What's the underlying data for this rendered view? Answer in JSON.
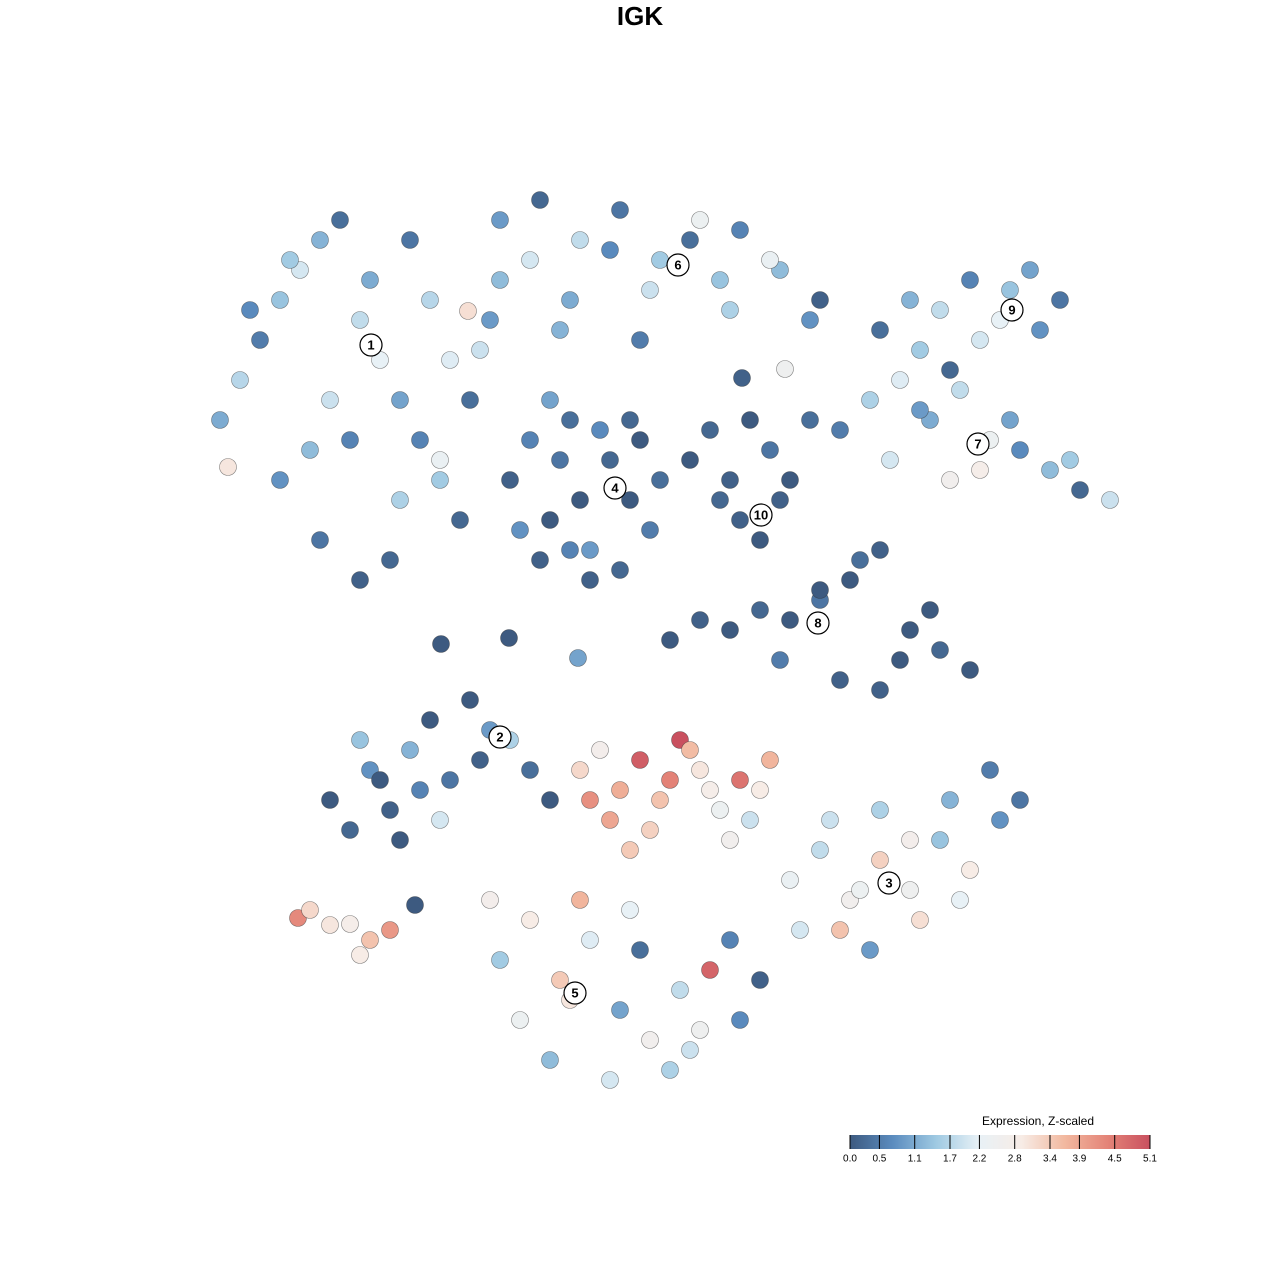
{
  "chart_data": {
    "type": "scatter",
    "title": "IGK",
    "xlim": [
      0,
      93
    ],
    "ylim": [
      0,
      92
    ],
    "x": [
      2,
      4,
      6,
      8,
      10,
      12,
      14,
      16,
      18,
      20,
      22,
      24,
      26,
      28,
      30,
      8,
      12,
      16,
      20,
      24,
      2.8,
      5,
      9,
      13,
      17,
      21,
      25,
      29,
      11,
      15,
      19,
      23,
      27,
      30,
      34,
      38,
      42,
      46,
      50,
      54,
      58,
      62,
      33,
      37,
      41,
      45,
      49,
      53,
      57,
      61,
      36,
      44,
      52,
      26.8,
      31,
      33,
      35,
      37,
      39,
      41,
      43,
      45,
      32,
      34,
      36,
      38,
      40,
      42,
      44,
      46,
      35,
      39,
      43,
      37,
      49,
      51,
      53,
      55,
      57,
      59,
      61,
      54,
      56,
      52,
      58,
      68,
      71,
      74,
      77,
      80,
      83,
      86,
      72,
      78,
      84,
      81,
      75,
      64,
      67,
      70,
      73,
      76,
      79,
      82,
      85,
      88,
      91,
      69,
      75,
      81,
      87,
      72,
      78,
      47,
      50,
      53,
      56,
      59,
      62,
      65,
      68,
      71,
      74,
      77,
      64,
      66,
      70,
      73,
      58,
      62,
      68,
      24.1,
      30.9,
      37.8,
      54.2,
      58.5,
      13,
      15,
      17,
      19,
      21,
      23,
      25,
      27,
      29,
      31,
      33,
      35,
      16,
      20,
      24,
      28,
      22,
      18,
      38,
      40,
      42,
      44,
      46,
      48,
      50,
      52,
      54,
      56,
      41,
      45,
      49,
      53,
      39,
      43,
      47,
      51,
      55,
      57,
      59,
      62,
      65,
      68,
      71,
      74,
      77,
      80,
      82,
      60,
      64,
      68,
      72,
      76,
      63,
      67,
      71,
      75,
      79,
      66,
      30,
      33,
      36,
      39,
      42,
      45,
      48,
      51,
      54,
      32,
      35,
      38,
      41,
      44,
      47,
      50,
      53,
      37,
      43,
      49,
      29,
      56,
      9.8,
      11,
      13,
      15,
      17,
      19,
      16,
      21.5
    ],
    "y": [
      68,
      72,
      76,
      80,
      83,
      86,
      88,
      78,
      74,
      70,
      66,
      62,
      58,
      75,
      82,
      62,
      56,
      52,
      60,
      64,
      63.3,
      79,
      84,
      70,
      82,
      86,
      74,
      78,
      65,
      66,
      54,
      80,
      70,
      88,
      90,
      86,
      89,
      84,
      88,
      87,
      83,
      80,
      84,
      80,
      85,
      81,
      86,
      79,
      84,
      78,
      77,
      76,
      82,
      78.9,
      62,
      66,
      58,
      68,
      55,
      64,
      60,
      57,
      57,
      54,
      64,
      60,
      67,
      53,
      66,
      62,
      70,
      52,
      68,
      55,
      64,
      67,
      62,
      68,
      65,
      62,
      68,
      58,
      56,
      60,
      60,
      77,
      80,
      79,
      82,
      78,
      83,
      80,
      75,
      76,
      77,
      81,
      73,
      67,
      70,
      72,
      68,
      71,
      66,
      65,
      63,
      61,
      60,
      64,
      62,
      68,
      64,
      69,
      63,
      46,
      48,
      47,
      49,
      48,
      50,
      52,
      55,
      47,
      45,
      43,
      42,
      54,
      44,
      49,
      44,
      51,
      41,
      45.6,
      46.2,
      44.2,
      72.2,
      73.1,
      30,
      27,
      33,
      29,
      35,
      38,
      32,
      40,
      37,
      36,
      33,
      30,
      36,
      26,
      28,
      34,
      31,
      32,
      33,
      35,
      31,
      34,
      30,
      36,
      33,
      29,
      32,
      31,
      28,
      27,
      35,
      26,
      30,
      25,
      32,
      31,
      28,
      34,
      22,
      25,
      20,
      24,
      21,
      26,
      23,
      28,
      30,
      17,
      17,
      29,
      18,
      20,
      28,
      15,
      26,
      30,
      33,
      21,
      14,
      18,
      12,
      16,
      9,
      6,
      11,
      13,
      8,
      8,
      4,
      20,
      2,
      15,
      3,
      7,
      16,
      10,
      19,
      5,
      20,
      12,
      18.2,
      19,
      17.5,
      17.6,
      16,
      17,
      14.5,
      19.5
    ],
    "values": [
      1.1,
      1.7,
      0.5,
      1.4,
      2.0,
      1.2,
      0.3,
      1.8,
      2.2,
      1.0,
      0.6,
      1.5,
      0.2,
      1.9,
      1.3,
      0.8,
      0.4,
      0.1,
      1.6,
      2.3,
      3.0,
      0.7,
      1.5,
      1.9,
      1.1,
      0.4,
      2.1,
      0.9,
      1.3,
      0.6,
      0.2,
      1.7,
      0.3,
      0.9,
      0.2,
      1.8,
      0.4,
      1.5,
      2.4,
      0.6,
      1.3,
      0.1,
      2.0,
      1.1,
      0.7,
      1.9,
      0.3,
      1.6,
      2.3,
      0.8,
      1.2,
      0.5,
      1.4,
      3.1,
      0.1,
      0.6,
      0.0,
      0.3,
      0.9,
      0.2,
      0.0,
      0.5,
      0.8,
      0.1,
      0.4,
      0.0,
      0.7,
      0.2,
      0.0,
      0.3,
      1.0,
      0.1,
      0.2,
      0.6,
      0.0,
      0.2,
      0.1,
      0.0,
      0.4,
      0.0,
      0.3,
      0.1,
      0.0,
      0.2,
      0.1,
      0.3,
      1.2,
      1.8,
      0.6,
      2.2,
      1.0,
      0.4,
      1.5,
      2.0,
      0.8,
      1.4,
      0.2,
      0.5,
      1.6,
      2.1,
      1.1,
      1.8,
      2.4,
      0.7,
      1.3,
      0.2,
      1.9,
      2.0,
      2.6,
      1.0,
      1.5,
      0.9,
      2.8,
      0.0,
      0.1,
      0.0,
      0.2,
      0.0,
      0.4,
      0.0,
      0.1,
      0.0,
      0.2,
      0.0,
      0.1,
      0.3,
      0.0,
      0.0,
      0.5,
      0.0,
      0.1,
      0.0,
      0.0,
      1.0,
      0.1,
      2.5,
      0.0,
      0.2,
      0.8,
      0.1,
      1.2,
      0.0,
      0.4,
      0.0,
      0.9,
      1.6,
      0.3,
      0.0,
      1.4,
      0.0,
      2.0,
      0.1,
      0.6,
      0.0,
      3.2,
      2.7,
      3.8,
      4.9,
      3.5,
      5.1,
      3.0,
      2.4,
      4.6,
      2.9,
      3.9,
      3.3,
      3.6,
      2.6,
      4.2,
      3.4,
      4.4,
      2.8,
      1.9,
      3.7,
      2.3,
      1.8,
      2.6,
      3.3,
      2.5,
      1.4,
      2.9,
      0.8,
      0.4,
      2.0,
      3.5,
      1.6,
      3.1,
      2.2,
      1.9,
      0.9,
      2.7,
      1.2,
      0.5,
      2.4,
      1.5,
      2.9,
      3.4,
      2.1,
      1.0,
      2.6,
      1.8,
      4.8,
      0.7,
      2.4,
      1.3,
      3.7,
      2.0,
      0.3,
      1.6,
      2.5,
      0.6,
      3.0,
      2.2,
      1.9,
      2.7,
      0.1,
      4.3,
      3.2,
      3.0,
      2.8,
      3.5,
      4.1,
      2.9,
      0.0
    ],
    "clusters": [
      {
        "label": "1",
        "x": 17.1,
        "y": 75.5
      },
      {
        "label": "2",
        "x": 30,
        "y": 36.3
      },
      {
        "label": "3",
        "x": 68.9,
        "y": 21.7
      },
      {
        "label": "4",
        "x": 41.5,
        "y": 61.2
      },
      {
        "label": "5",
        "x": 37.5,
        "y": 10.7
      },
      {
        "label": "6",
        "x": 47.8,
        "y": 83.5
      },
      {
        "label": "7",
        "x": 77.8,
        "y": 65.6
      },
      {
        "label": "8",
        "x": 61.8,
        "y": 47.7
      },
      {
        "label": "9",
        "x": 81.2,
        "y": 79
      },
      {
        "label": "10",
        "x": 56.1,
        "y": 58.5
      }
    ],
    "colorbar": {
      "title": "Expression, Z-scaled",
      "clim": [
        0,
        5.1
      ],
      "colors": [
        "#3d5a80",
        "#5b8cbf",
        "#9ec9e2",
        "#e8f1f6",
        "#f7ece6",
        "#f2b9a0",
        "#e48478",
        "#c9505f"
      ],
      "ticks": [
        {
          "value": 0,
          "label": "0.0"
        },
        0.5,
        1.1,
        1.7,
        2.2,
        2.8,
        3.4,
        3.9,
        4.5,
        5.1
      ]
    }
  }
}
